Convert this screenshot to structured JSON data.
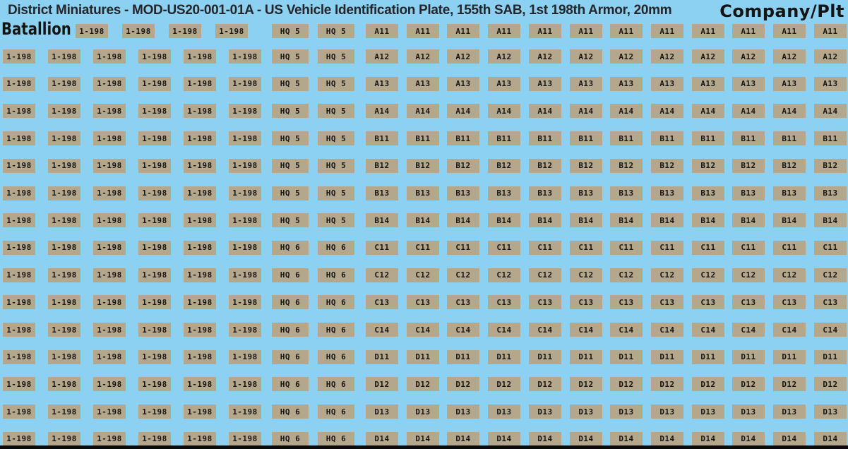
{
  "title": "District Miniatures - MOD-US20-001-01A - US Vehicle Identification Plate, 155th SAB, 1st 198th Armor, 20mm",
  "labels": {
    "battalion_header": "Batallion",
    "company_plt_header": "Company/Plt"
  },
  "colors": {
    "background": "#8CD1F1",
    "plate": "#B5A78C",
    "plate_text": "#161616",
    "title_text": "#25252A",
    "bottom_bar": "#0B0B0B"
  },
  "plates": {
    "battalion_code": "1-198",
    "hq_copies_per_row": 2,
    "code_copies_per_row": 12,
    "rows": [
      {
        "battalion_count": 4,
        "hq": "HQ 5",
        "code": "A11"
      },
      {
        "battalion_count": 6,
        "hq": "HQ 5",
        "code": "A12"
      },
      {
        "battalion_count": 6,
        "hq": "HQ 5",
        "code": "A13"
      },
      {
        "battalion_count": 6,
        "hq": "HQ 5",
        "code": "A14"
      },
      {
        "battalion_count": 6,
        "hq": "HQ 5",
        "code": "B11"
      },
      {
        "battalion_count": 6,
        "hq": "HQ 5",
        "code": "B12"
      },
      {
        "battalion_count": 6,
        "hq": "HQ 5",
        "code": "B13"
      },
      {
        "battalion_count": 6,
        "hq": "HQ 5",
        "code": "B14"
      },
      {
        "battalion_count": 6,
        "hq": "HQ 6",
        "code": "C11"
      },
      {
        "battalion_count": 6,
        "hq": "HQ 6",
        "code": "C12"
      },
      {
        "battalion_count": 6,
        "hq": "HQ 6",
        "code": "C13"
      },
      {
        "battalion_count": 6,
        "hq": "HQ 6",
        "code": "C14"
      },
      {
        "battalion_count": 6,
        "hq": "HQ 6",
        "code": "D11"
      },
      {
        "battalion_count": 6,
        "hq": "HQ 6",
        "code": "D12"
      },
      {
        "battalion_count": 6,
        "hq": "HQ 6",
        "code": "D13"
      },
      {
        "battalion_count": 6,
        "hq": "HQ 6",
        "code": "D14"
      }
    ]
  }
}
